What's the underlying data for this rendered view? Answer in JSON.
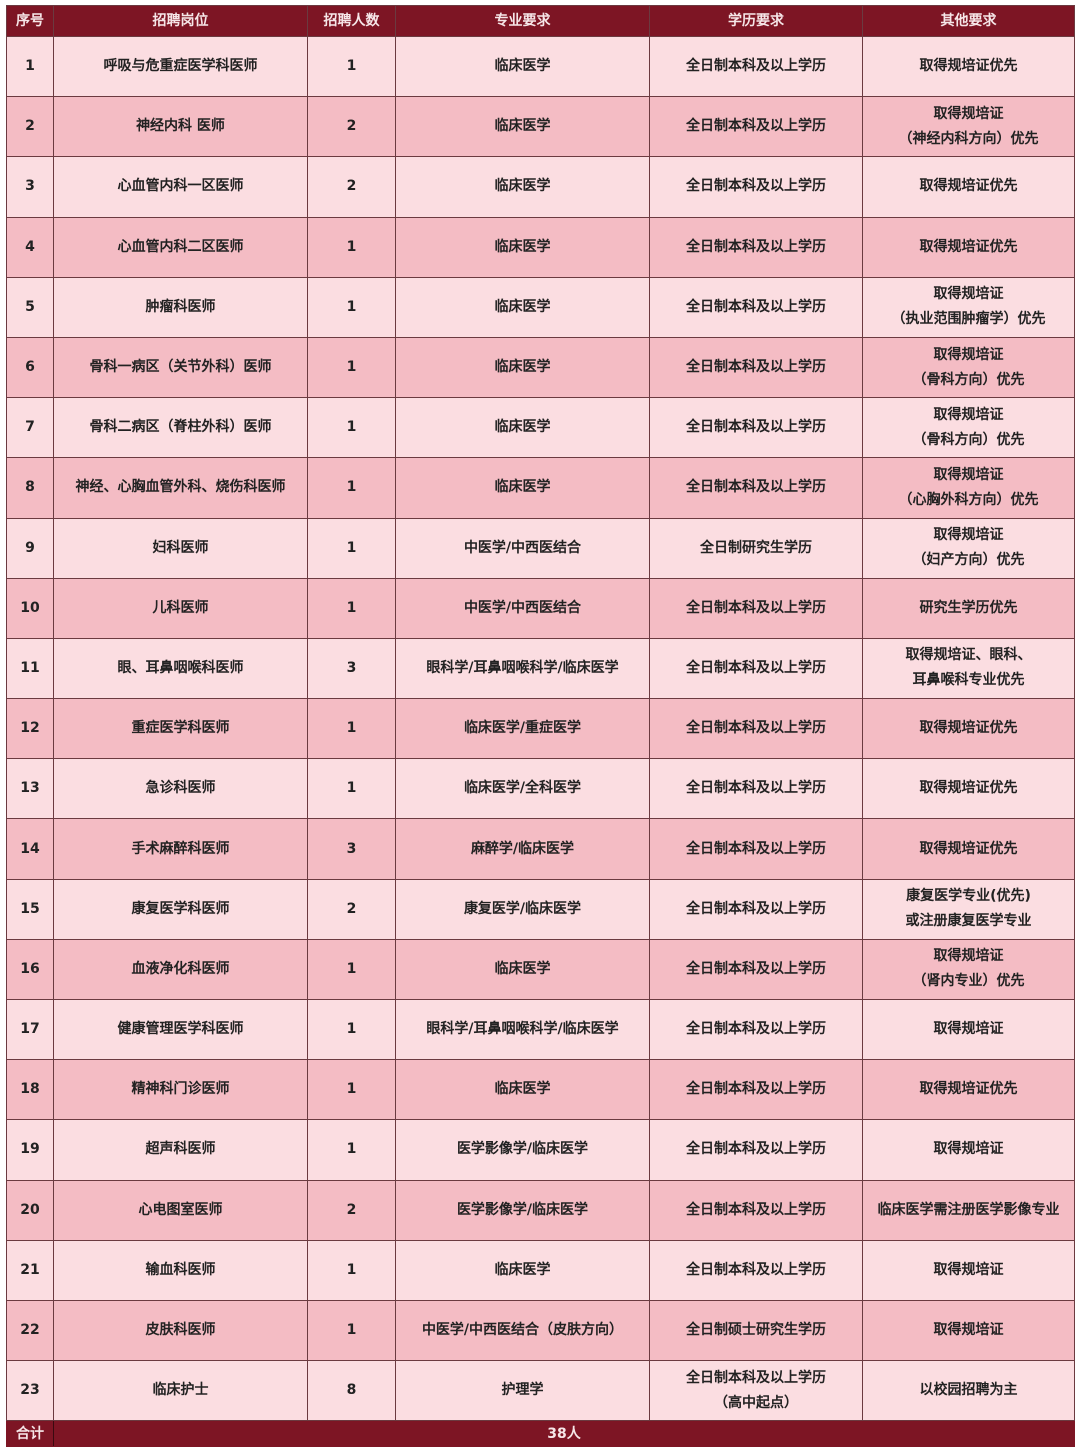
{
  "headers": [
    "序号",
    "招聘岗位",
    "招聘人数",
    "专业要求",
    "学历要求",
    "其他要求"
  ],
  "rows": [
    [
      "1",
      "呼吸与危重症医学科医师",
      "1",
      "临床医学",
      "全日制本科及以上学历",
      "取得规培证优先"
    ],
    [
      "2",
      "神经内科 医师",
      "2",
      "临床医学",
      "全日制本科及以上学历",
      "取得规培证\n（神经内科方向）优先"
    ],
    [
      "3",
      "心血管内科一区医师",
      "2",
      "临床医学",
      "全日制本科及以上学历",
      "取得规培证优先"
    ],
    [
      "4",
      "心血管内科二区医师",
      "1",
      "临床医学",
      "全日制本科及以上学历",
      "取得规培证优先"
    ],
    [
      "5",
      "肿瘤科医师",
      "1",
      "临床医学",
      "全日制本科及以上学历",
      "取得规培证\n（执业范围肿瘤学）优先"
    ],
    [
      "6",
      "骨科一病区（关节外科）医师",
      "1",
      "临床医学",
      "全日制本科及以上学历",
      "取得规培证\n（骨科方向）优先"
    ],
    [
      "7",
      "骨科二病区（脊柱外科）医师",
      "1",
      "临床医学",
      "全日制本科及以上学历",
      "取得规培证\n（骨科方向）优先"
    ],
    [
      "8",
      "神经、心胸血管外科、烧伤科医师",
      "1",
      "临床医学",
      "全日制本科及以上学历",
      "取得规培证\n（心胸外科方向）优先"
    ],
    [
      "9",
      "妇科医师",
      "1",
      "中医学/中西医结合",
      "全日制研究生学历",
      "取得规培证\n（妇产方向）优先"
    ],
    [
      "10",
      "儿科医师",
      "1",
      "中医学/中西医结合",
      "全日制本科及以上学历",
      "研究生学历优先"
    ],
    [
      "11",
      "眼、耳鼻咽喉科医师",
      "3",
      "眼科学/耳鼻咽喉科学/临床医学",
      "全日制本科及以上学历",
      "取得规培证、眼科、\n耳鼻喉科专业优先"
    ],
    [
      "12",
      "重症医学科医师",
      "1",
      "临床医学/重症医学",
      "全日制本科及以上学历",
      "取得规培证优先"
    ],
    [
      "13",
      "急诊科医师",
      "1",
      "临床医学/全科医学",
      "全日制本科及以上学历",
      "取得规培证优先"
    ],
    [
      "14",
      "手术麻醉科医师",
      "3",
      "麻醉学/临床医学",
      "全日制本科及以上学历",
      "取得规培证优先"
    ],
    [
      "15",
      "康复医学科医师",
      "2",
      "康复医学/临床医学",
      "全日制本科及以上学历",
      "康复医学专业(优先)\n或注册康复医学专业"
    ],
    [
      "16",
      "血液净化科医师",
      "1",
      "临床医学",
      "全日制本科及以上学历",
      "取得规培证\n（肾内专业）优先"
    ],
    [
      "17",
      "健康管理医学科医师",
      "1",
      "眼科学/耳鼻咽喉科学/临床医学",
      "全日制本科及以上学历",
      "取得规培证"
    ],
    [
      "18",
      "精神科门诊医师",
      "1",
      "临床医学",
      "全日制本科及以上学历",
      "取得规培证优先"
    ],
    [
      "19",
      "超声科医师",
      "1",
      "医学影像学/临床医学",
      "全日制本科及以上学历",
      "取得规培证"
    ],
    [
      "20",
      "心电图室医师",
      "2",
      "医学影像学/临床医学",
      "全日制本科及以上学历",
      "临床医学需注册医学影像专业"
    ],
    [
      "21",
      "输血科医师",
      "1",
      "临床医学",
      "全日制本科及以上学历",
      "取得规培证"
    ],
    [
      "22",
      "皮肤科医师",
      "1",
      "中医学/中西医结合（皮肤方向）",
      "全日制硕士研究生学历",
      "取得规培证"
    ],
    [
      "23",
      "临床护士",
      "8",
      "护理学",
      "全日制本科及以上学历\n（高中起点）",
      "以校园招聘为主"
    ]
  ],
  "total": {
    "label": "合计",
    "value": "38人"
  },
  "colors": {
    "header": "#7d1524",
    "row_light": "#fbdde1",
    "row_dark": "#f4bcc4"
  }
}
